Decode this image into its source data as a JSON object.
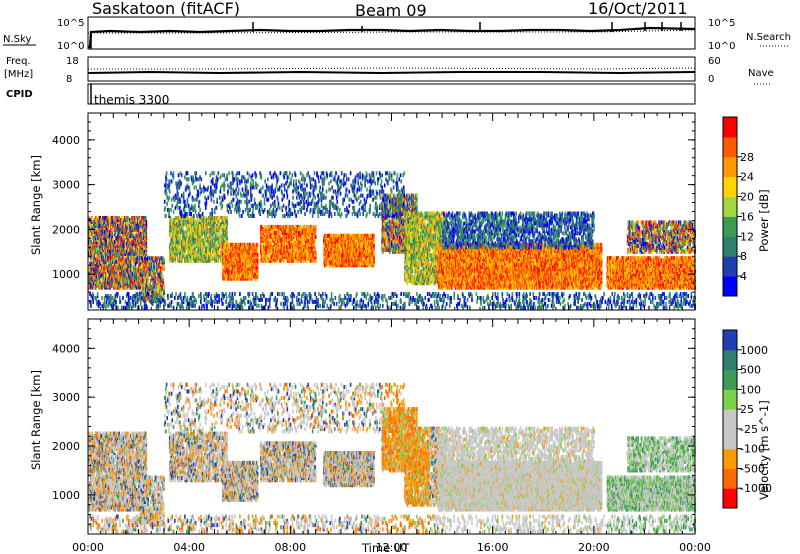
{
  "header": {
    "site": "Saskatoon (fitACF)",
    "beam": "Beam 09",
    "date": "16/Oct/2011"
  },
  "strips": {
    "nsky": {
      "label": "N.Sky",
      "ticks": [
        "10^5",
        "10^0"
      ]
    },
    "nsearch": {
      "label": "N.Search",
      "ticks": [
        "10^5",
        "10^0"
      ]
    },
    "freq": {
      "label_line1": "Freq.",
      "label_line2": "[MHz]",
      "ticks": [
        "18",
        "8"
      ]
    },
    "nave": {
      "label": "Nave",
      "ticks": [
        "60",
        "0"
      ]
    },
    "cpid": {
      "label": "CPID",
      "mode_text": "themis 3300"
    }
  },
  "colors": {
    "power_scale": [
      "#0000ff",
      "#1f3fb3",
      "#2f7f6f",
      "#3c9a55",
      "#a0d840",
      "#ffd400",
      "#ff9a00",
      "#ff5a00",
      "#ff0000"
    ],
    "velocity_scale": [
      "#1f3fb3",
      "#2f7f6f",
      "#3c9a55",
      "#7bd24b",
      "#c8c8c8",
      "#c8c8c8",
      "#ff9a00",
      "#ff6a00",
      "#ff0000"
    ]
  },
  "chart_data": [
    {
      "type": "heatmap",
      "panel": "power",
      "xlabel": "",
      "ylabel": "Slant Range [km]",
      "x_ticks": [
        "00:00",
        "04:00",
        "08:00",
        "12:00",
        "16:00",
        "20:00",
        "00:00"
      ],
      "x_range_hours": [
        0,
        24
      ],
      "y_ticks": [
        1000,
        2000,
        3000,
        4000
      ],
      "ylim": [
        200,
        4600
      ],
      "colorbar_label": "Power [dB]",
      "colorbar_ticks": [
        4,
        8,
        12,
        16,
        20,
        24,
        28
      ],
      "colorbar_range": [
        0,
        32
      ],
      "grid": false
    },
    {
      "type": "heatmap",
      "panel": "velocity",
      "xlabel": "Time UT",
      "ylabel": "Slant Range [km]",
      "x_ticks": [
        "00:00",
        "04:00",
        "08:00",
        "12:00",
        "16:00",
        "20:00",
        "00:00"
      ],
      "x_range_hours": [
        0,
        24
      ],
      "y_ticks": [
        1000,
        2000,
        3000,
        4000
      ],
      "ylim": [
        200,
        4600
      ],
      "colorbar_label": "Velocity [m s^-1]",
      "colorbar_ticks": [
        "1000",
        "500",
        "100",
        "25",
        "-25",
        "-100",
        "-500",
        "-1000"
      ],
      "grid": false
    }
  ]
}
